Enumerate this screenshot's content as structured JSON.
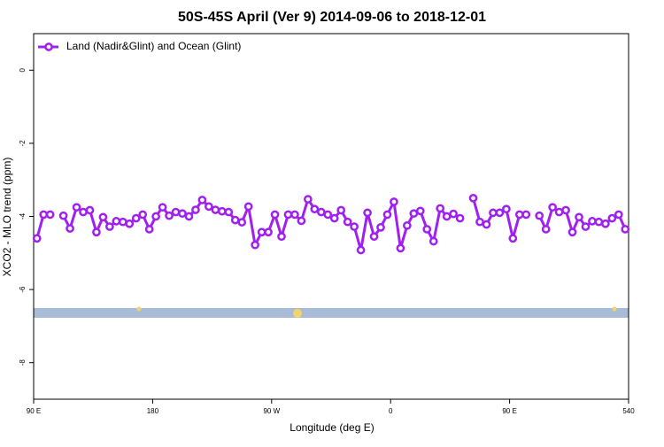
{
  "chart_data": {
    "type": "line",
    "title": "50S-45S April (Ver 9)   2014-09-06 to 2018-12-01",
    "xlabel": "Longitude (deg E)",
    "ylabel": "XCO2 - MLO trend (ppm)",
    "xlim": [
      90,
      540
    ],
    "xticks": [
      {
        "value": 90,
        "label": "90 E"
      },
      180,
      {
        "value": 270,
        "label": "90 W"
      },
      {
        "value": 360,
        "label": "0"
      },
      {
        "value": 450,
        "label": "90 E"
      },
      540
    ],
    "ylim": [
      -9,
      1
    ],
    "yticks": [
      0,
      -2,
      -4,
      -6,
      -8
    ],
    "legend": "top-left",
    "series": [
      {
        "name": "Land (Nadir&Glint) and Ocean (Glint)",
        "color": "#a020f0",
        "x": [
          92.5,
          97.5,
          102.5,
          107.5,
          112.5,
          117.5,
          122.5,
          127.5,
          132.5,
          137.5,
          142.5,
          147.5,
          152.5,
          157.5,
          162.5,
          167.5,
          172.5,
          177.5,
          182.5,
          187.5,
          192.5,
          197.5,
          202.5,
          207.5,
          212.5,
          217.5,
          222.5,
          227.5,
          232.5,
          237.5,
          242.5,
          247.5,
          252.5,
          257.5,
          262.5,
          267.5,
          272.5,
          277.5,
          282.5,
          287.5,
          292.5,
          297.5,
          302.5,
          307.5,
          312.5,
          317.5,
          322.5,
          327.5,
          332.5,
          337.5,
          342.5,
          347.5,
          352.5,
          357.5,
          362.5,
          367.5,
          372.5,
          377.5,
          382.5,
          387.5,
          392.5,
          397.5,
          402.5,
          407.5,
          412.5,
          417.5,
          422.5,
          427.5,
          432.5,
          437.5,
          442.5,
          447.5,
          452.5,
          457.5,
          462.5,
          467.5,
          472.5,
          477.5,
          482.5,
          487.5,
          492.5,
          497.5,
          502.5,
          507.5,
          512.5,
          517.5,
          522.5,
          527.5,
          532.5,
          537.5
        ],
        "values": [
          -4.6,
          -3.95,
          -3.95,
          null,
          -3.98,
          -4.33,
          -3.75,
          -3.88,
          -3.83,
          -4.43,
          -4.02,
          -4.28,
          -4.13,
          -4.15,
          -4.2,
          -4.05,
          -3.95,
          -4.35,
          -4.0,
          -3.75,
          -3.98,
          -3.88,
          -3.92,
          -4.0,
          -3.82,
          -3.55,
          -3.73,
          -3.82,
          -3.86,
          -3.88,
          -4.1,
          -4.16,
          -3.73,
          -4.78,
          -4.43,
          -4.43,
          -3.95,
          -4.55,
          -3.95,
          -3.95,
          -4.12,
          -3.53,
          -3.8,
          -3.88,
          -3.95,
          -4.05,
          -3.83,
          -4.15,
          -4.28,
          -4.92,
          -3.9,
          -4.55,
          -4.3,
          -3.95,
          -3.6,
          -4.87,
          -4.25,
          -3.92,
          -3.85,
          -4.35,
          -4.68,
          -3.78,
          -4.0,
          -3.93,
          -4.05,
          null,
          -3.5,
          -4.15,
          -4.22,
          -3.9,
          -3.9,
          -3.8,
          -4.6,
          -3.95,
          -3.95,
          null,
          -3.98,
          -4.35,
          -3.75,
          -3.88,
          -3.83,
          -4.43,
          -4.02,
          -4.28,
          -4.13,
          -4.15,
          -4.2,
          -4.05,
          -3.95,
          -4.35
        ]
      }
    ]
  }
}
